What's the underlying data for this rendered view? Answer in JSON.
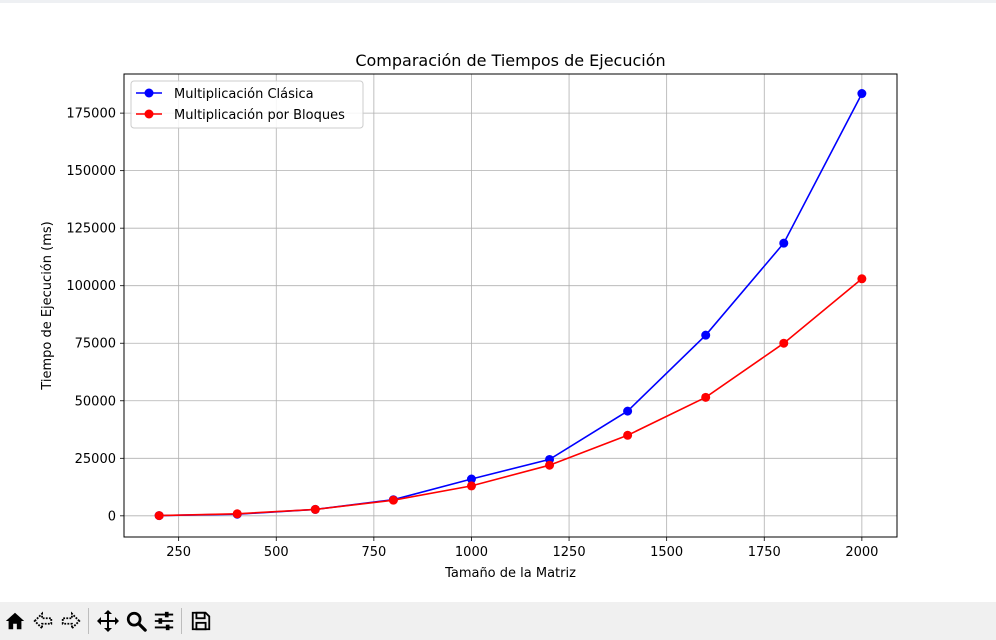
{
  "window": {
    "toolbar": {
      "buttons": [
        {
          "icon": "home-icon"
        },
        {
          "icon": "back-arrow-icon"
        },
        {
          "icon": "forward-arrow-icon"
        },
        {
          "icon": "pan-move-icon"
        },
        {
          "icon": "zoom-magnifier-icon"
        },
        {
          "icon": "configure-subplots-icon"
        },
        {
          "icon": "save-floppy-icon"
        }
      ]
    }
  },
  "chart_data": {
    "type": "line",
    "title": "Comparación de Tiempos de Ejecución",
    "xlabel": "Tamaño de la Matriz",
    "ylabel": "Tiempo de Ejecución (ms)",
    "x": [
      200,
      400,
      600,
      800,
      1000,
      1200,
      1400,
      1600,
      1800,
      2000
    ],
    "xlim": [
      110,
      2090
    ],
    "ylim": [
      -9200,
      192000
    ],
    "xticks": [
      250,
      500,
      750,
      1000,
      1250,
      1500,
      1750,
      2000
    ],
    "xtick_labels": [
      "250",
      "500",
      "750",
      "1000",
      "1250",
      "1500",
      "1750",
      "2000"
    ],
    "yticks": [
      0,
      25000,
      50000,
      75000,
      100000,
      125000,
      150000,
      175000
    ],
    "ytick_labels": [
      "0",
      "25000",
      "50000",
      "75000",
      "100000",
      "125000",
      "150000",
      "175000"
    ],
    "grid": true,
    "legend_position": "upper left",
    "series": [
      {
        "name": "Multiplicación Clásica",
        "color": "#0000ff",
        "marker": "circle",
        "values": [
          100,
          700,
          2800,
          7000,
          16000,
          24500,
          45500,
          78500,
          118500,
          183500
        ]
      },
      {
        "name": "Multiplicación por Bloques",
        "color": "#ff0000",
        "marker": "circle",
        "values": [
          100,
          900,
          2800,
          6800,
          13000,
          22000,
          35000,
          51500,
          75000,
          103000
        ]
      }
    ]
  }
}
